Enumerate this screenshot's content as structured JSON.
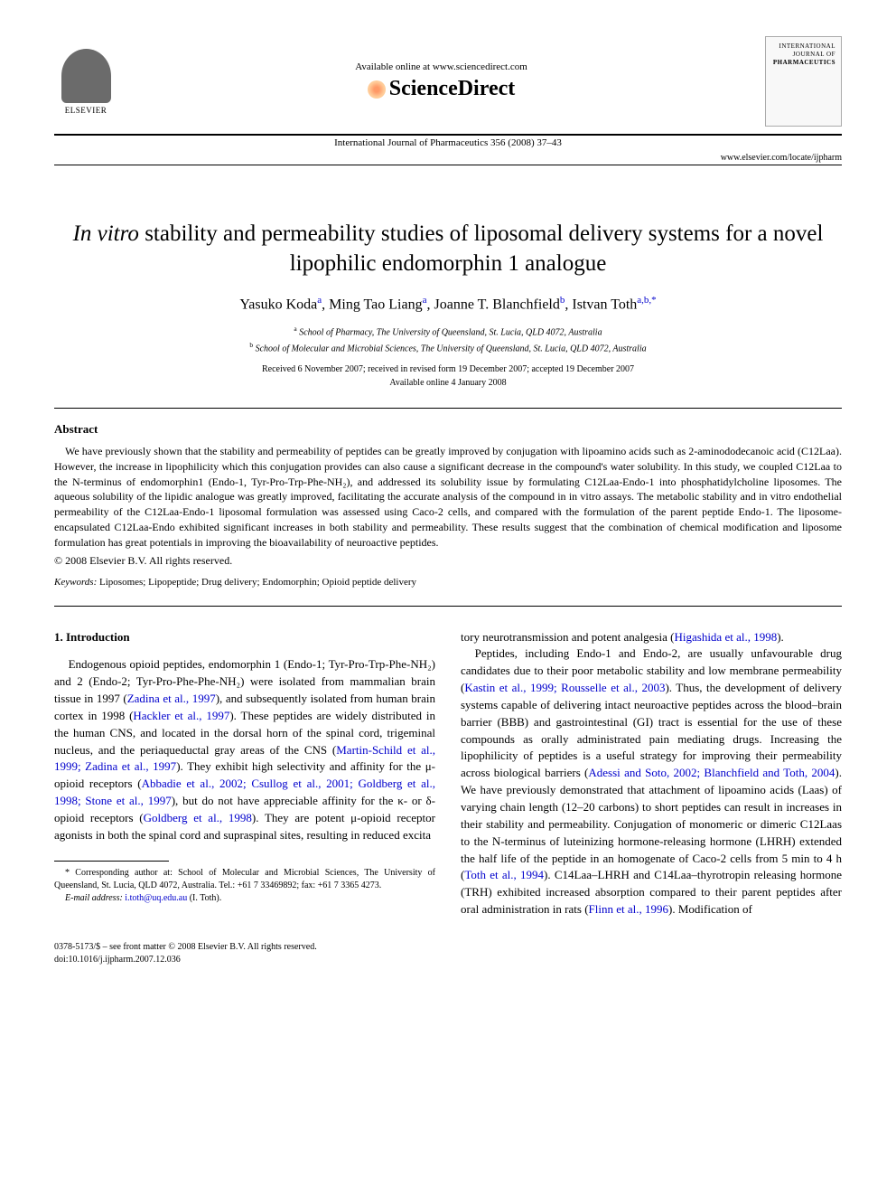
{
  "header": {
    "available_text": "Available online at www.sciencedirect.com",
    "sciencedirect": "ScienceDirect",
    "elsevier": "ELSEVIER",
    "journal_ref": "International Journal of Pharmaceutics 356 (2008) 37–43",
    "journal_url": "www.elsevier.com/locate/ijpharm",
    "cover_line1": "INTERNATIONAL JOURNAL OF",
    "cover_line2": "PHARMACEUTICS"
  },
  "title": {
    "prefix": "In vitro",
    "rest": " stability and permeability studies of liposomal delivery systems for a novel lipophilic endomorphin 1 analogue"
  },
  "authors": "Yasuko Koda",
  "author_list": [
    {
      "name": "Yasuko Koda",
      "sup": "a"
    },
    {
      "name": "Ming Tao Liang",
      "sup": "a"
    },
    {
      "name": "Joanne T. Blanchfield",
      "sup": "b"
    },
    {
      "name": "Istvan Toth",
      "sup": "a,b,*"
    }
  ],
  "affiliations": [
    {
      "sup": "a",
      "text": "School of Pharmacy, The University of Queensland, St. Lucia, QLD 4072, Australia"
    },
    {
      "sup": "b",
      "text": "School of Molecular and Microbial Sciences, The University of Queensland, St. Lucia, QLD 4072, Australia"
    }
  ],
  "dates": {
    "line1": "Received 6 November 2007; received in revised form 19 December 2007; accepted 19 December 2007",
    "line2": "Available online 4 January 2008"
  },
  "abstract": {
    "heading": "Abstract",
    "text": "We have previously shown that the stability and permeability of peptides can be greatly improved by conjugation with lipoamino acids such as 2-aminododecanoic acid (C12Laa). However, the increase in lipophilicity which this conjugation provides can also cause a significant decrease in the compound's water solubility. In this study, we coupled C12Laa to the N-terminus of endomorphin1 (Endo-1, Tyr-Pro-Trp-Phe-NH₂), and addressed its solubility issue by formulating C12Laa-Endo-1 into phosphatidylcholine liposomes. The aqueous solubility of the lipidic analogue was greatly improved, facilitating the accurate analysis of the compound in in vitro assays. The metabolic stability and in vitro endothelial permeability of the C12Laa-Endo-1 liposomal formulation was assessed using Caco-2 cells, and compared with the formulation of the parent peptide Endo-1. The liposome-encapsulated C12Laa-Endo exhibited significant increases in both stability and permeability. These results suggest that the combination of chemical modification and liposome formulation has great potentials in improving the bioavailability of neuroactive peptides.",
    "copyright": "© 2008 Elsevier B.V. All rights reserved."
  },
  "keywords": {
    "label": "Keywords:",
    "text": " Liposomes; Lipopeptide; Drug delivery; Endomorphin; Opioid peptide delivery"
  },
  "intro": {
    "heading": "1. Introduction",
    "col1_p1_a": "Endogenous opioid peptides, endomorphin 1 (Endo-1; Tyr-Pro-Trp-Phe-NH₂) and 2 (Endo-2; Tyr-Pro-Phe-Phe-NH₂) were isolated from mammalian brain tissue in 1997 (",
    "col1_ref1": "Zadina et al., 1997",
    "col1_p1_b": "), and subsequently isolated from human brain cortex in 1998 (",
    "col1_ref2": "Hackler et al., 1997",
    "col1_p1_c": "). These peptides are widely distributed in the human CNS, and located in the dorsal horn of the spinal cord, trigeminal nucleus, and the periaqueductal gray areas of the CNS (",
    "col1_ref3": "Martin-Schild et al., 1999; Zadina et al., 1997",
    "col1_p1_d": "). They exhibit high selectivity and affinity for the μ-opioid receptors (",
    "col1_ref4": "Abbadie et al., 2002; Csullog et al., 2001; Goldberg et al., 1998; Stone et al., 1997",
    "col1_p1_e": "), but do not have appreciable affinity for the κ- or δ-opioid receptors (",
    "col1_ref5": "Goldberg et al., 1998",
    "col1_p1_f": "). They are potent μ-opioid receptor agonists in both the spinal cord and supraspinal sites, resulting in reduced excita",
    "col2_cont_a": "tory neurotransmission and potent analgesia (",
    "col2_ref1": "Higashida et al., 1998",
    "col2_cont_b": ").",
    "col2_p2_a": "Peptides, including Endo-1 and Endo-2, are usually unfavourable drug candidates due to their poor metabolic stability and low membrane permeability (",
    "col2_ref2": "Kastin et al., 1999; Rousselle et al., 2003",
    "col2_p2_b": "). Thus, the development of delivery systems capable of delivering intact neuroactive peptides across the blood–brain barrier (BBB) and gastrointestinal (GI) tract is essential for the use of these compounds as orally administrated pain mediating drugs. Increasing the lipophilicity of peptides is a useful strategy for improving their permeability across biological barriers (",
    "col2_ref3": "Adessi and Soto, 2002; Blanchfield and Toth, 2004",
    "col2_p2_c": "). We have previously demonstrated that attachment of lipoamino acids (Laas) of varying chain length (12–20 carbons) to short peptides can result in increases in their stability and permeability. Conjugation of monomeric or dimeric C12Laas to the N-terminus of luteinizing hormone-releasing hormone (LHRH) extended the half life of the peptide in an homogenate of Caco-2 cells from 5 min to 4 h (",
    "col2_ref4": "Toth et al., 1994",
    "col2_p2_d": "). C14Laa–LHRH and C14Laa–thyrotropin releasing hormone (TRH) exhibited increased absorption compared to their parent peptides after oral administration in rats (",
    "col2_ref5": "Flinn et al., 1996",
    "col2_p2_e": "). Modification of"
  },
  "footnote": {
    "corr_label": "* ",
    "corr_text": "Corresponding author at: School of Molecular and Microbial Sciences, The University of Queensland, St. Lucia, QLD 4072, Australia. Tel.: +61 7 33469892; fax: +61 7 3365 4273.",
    "email_label": "E-mail address:",
    "email": " i.toth@uq.edu.au",
    "email_suffix": " (I. Toth)."
  },
  "footer": {
    "line1": "0378-5173/$ – see front matter © 2008 Elsevier B.V. All rights reserved.",
    "line2": "doi:10.1016/j.ijpharm.2007.12.036"
  },
  "colors": {
    "link": "#0000cc",
    "text": "#000000",
    "background": "#ffffff"
  }
}
